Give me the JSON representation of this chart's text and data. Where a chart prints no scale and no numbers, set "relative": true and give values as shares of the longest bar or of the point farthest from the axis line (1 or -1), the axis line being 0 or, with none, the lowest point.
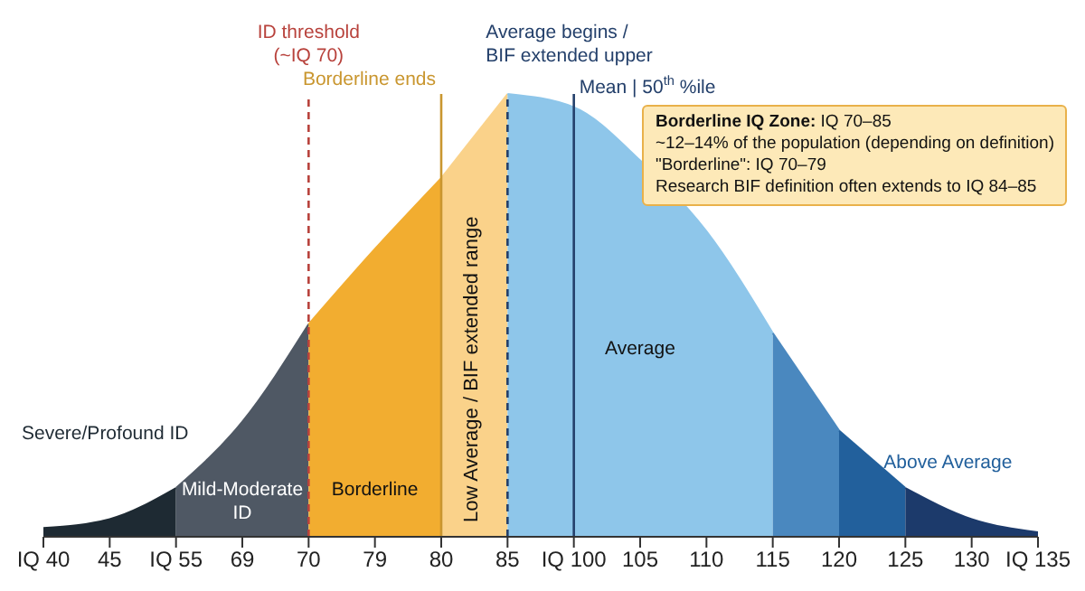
{
  "chart_data": {
    "type": "area",
    "relative": true,
    "legend": false,
    "grid": false,
    "categories": [
      "IQ 40",
      "45",
      "IQ 55",
      "69",
      "70",
      "79",
      "80",
      "85",
      "IQ 100",
      "105",
      "110",
      "115",
      "120",
      "125",
      "130",
      "IQ 135"
    ],
    "series": [
      {
        "name": "Severe/Profound ID",
        "color": "#1e2a33",
        "values": [
          0.02,
          0.04,
          0.11,
          null,
          null,
          null,
          null,
          null,
          null,
          null,
          null,
          null,
          null,
          null,
          null,
          null
        ]
      },
      {
        "name": "Mild-Moderate ID",
        "color": "#4f5864",
        "values": [
          null,
          null,
          0.11,
          0.26,
          0.48,
          null,
          null,
          null,
          null,
          null,
          null,
          null,
          null,
          null,
          null,
          null
        ]
      },
      {
        "name": "Borderline",
        "color": "#f2ad30",
        "values": [
          null,
          null,
          null,
          null,
          0.48,
          0.65,
          0.81,
          null,
          null,
          null,
          null,
          null,
          null,
          null,
          null,
          null
        ]
      },
      {
        "name": "Low Average / BIF extended range",
        "color": "#fad28a",
        "values": [
          null,
          null,
          null,
          null,
          null,
          null,
          0.81,
          1,
          null,
          null,
          null,
          null,
          null,
          null,
          null,
          null
        ]
      },
      {
        "name": "Average",
        "color": "#8ec6ea",
        "values": [
          null,
          null,
          null,
          null,
          null,
          null,
          null,
          1,
          0.97,
          0.85,
          0.69,
          0.46,
          null,
          null,
          null,
          null
        ]
      },
      {
        "color": "#4a88bf",
        "values": [
          null,
          null,
          null,
          null,
          null,
          null,
          null,
          null,
          null,
          null,
          null,
          0.46,
          0.24,
          null,
          null,
          null
        ]
      },
      {
        "name": "Above Average",
        "color": "#22609c",
        "values": [
          null,
          null,
          null,
          null,
          null,
          null,
          null,
          null,
          null,
          null,
          null,
          null,
          0.24,
          0.11,
          null,
          null
        ]
      },
      {
        "color": "#1c3a6b",
        "values": [
          null,
          null,
          null,
          null,
          null,
          null,
          null,
          null,
          null,
          null,
          null,
          null,
          null,
          0.11,
          0.04,
          0.01
        ]
      }
    ],
    "ref_lines": [
      {
        "axis": "x",
        "value": "70",
        "label": "ID threshold\n(~IQ 70)",
        "color": "#b8423c",
        "line_style": "dashed"
      },
      {
        "axis": "x",
        "value": "80",
        "label": "Borderline ends",
        "color": "#c9962f",
        "line_style": "solid"
      },
      {
        "axis": "x",
        "value": "85",
        "label": "Average begins /\nBIF extended upper",
        "color": "#24406b",
        "line_style": "dashed"
      },
      {
        "axis": "x",
        "value": "IQ 100",
        "label": "Mean | 50$^{th}$ %ile",
        "color": "#24406b",
        "line_style": "solid"
      }
    ],
    "annotations": [
      "Borderline IQ Zone: IQ 70–85",
      "~12–14% of the population (depending on definition)",
      "\"Borderline\": IQ 70–79",
      "Research BIF definition often extends to IQ 84–85"
    ]
  }
}
